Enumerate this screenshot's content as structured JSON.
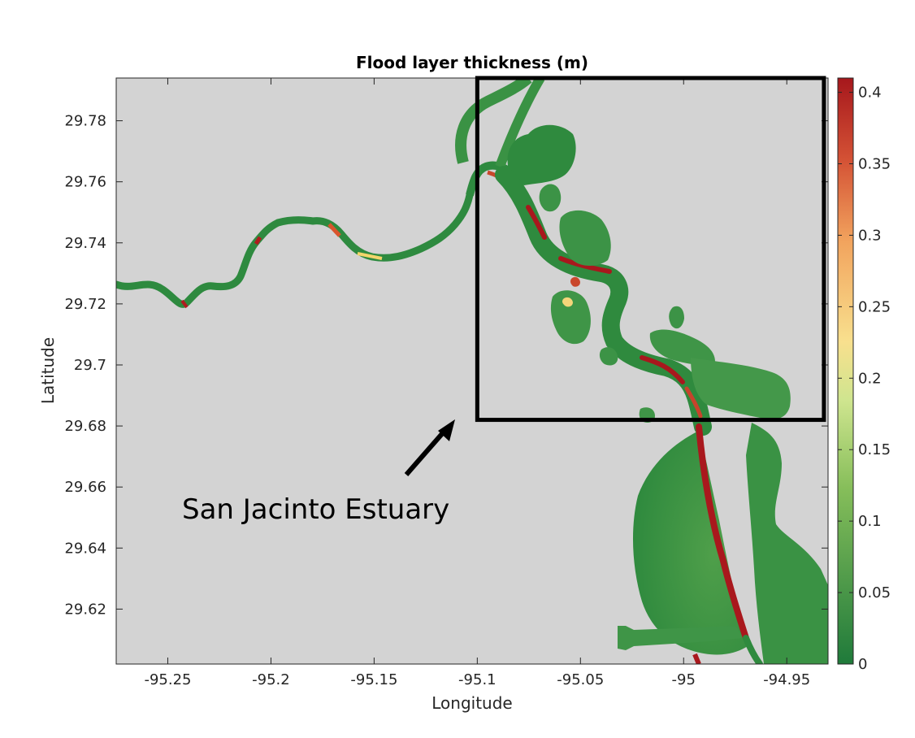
{
  "figure": {
    "title": "Flood layer thickness (m)",
    "xlabel": "Longitude",
    "ylabel": "Latitude",
    "annotation": "San Jacinto Estuary",
    "background_color": "#d3d3d3"
  },
  "map_extent": {
    "lon_range": [
      -95.275,
      -94.93
    ],
    "lat_range": [
      29.602,
      29.794
    ]
  },
  "axes": {
    "x_ticks": [
      {
        "value": -95.25,
        "label": "-95.25"
      },
      {
        "value": -95.2,
        "label": "-95.2"
      },
      {
        "value": -95.15,
        "label": "-95.15"
      },
      {
        "value": -95.1,
        "label": "-95.1"
      },
      {
        "value": -95.05,
        "label": "-95.05"
      },
      {
        "value": -95.0,
        "label": "-95"
      },
      {
        "value": -94.95,
        "label": "-94.95"
      }
    ],
    "y_ticks": [
      {
        "value": 29.62,
        "label": "29.62"
      },
      {
        "value": 29.64,
        "label": "29.64"
      },
      {
        "value": 29.66,
        "label": "29.66"
      },
      {
        "value": 29.68,
        "label": "29.68"
      },
      {
        "value": 29.7,
        "label": "29.7"
      },
      {
        "value": 29.72,
        "label": "29.72"
      },
      {
        "value": 29.74,
        "label": "29.74"
      },
      {
        "value": 29.76,
        "label": "29.76"
      },
      {
        "value": 29.78,
        "label": "29.78"
      }
    ]
  },
  "colorbar": {
    "range": [
      0,
      0.41
    ],
    "ticks": [
      {
        "value": 0,
        "label": "0"
      },
      {
        "value": 0.05,
        "label": "0.05"
      },
      {
        "value": 0.1,
        "label": "0.1"
      },
      {
        "value": 0.15,
        "label": "0.15"
      },
      {
        "value": 0.2,
        "label": "0.2"
      },
      {
        "value": 0.25,
        "label": "0.25"
      },
      {
        "value": 0.3,
        "label": "0.3"
      },
      {
        "value": 0.35,
        "label": "0.35"
      },
      {
        "value": 0.4,
        "label": "0.4"
      }
    ],
    "colors": [
      "#1f7a3a",
      "#4f9a4a",
      "#86be5a",
      "#cfe58f",
      "#f8e08e",
      "#f2a45e",
      "#d45235",
      "#a6171c"
    ]
  },
  "highlight_box": {
    "lon_range": [
      -95.1,
      -94.932
    ],
    "lat_range": [
      29.682,
      29.794
    ]
  }
}
